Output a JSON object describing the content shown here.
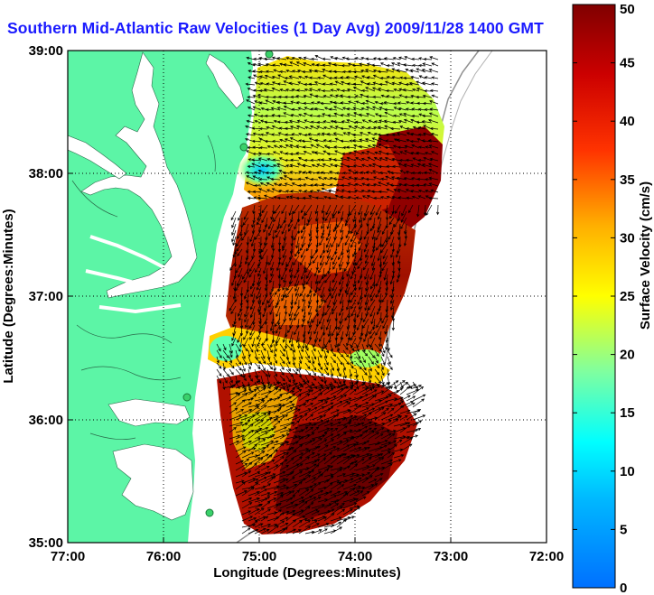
{
  "title": "Southern Mid-Atlantic Raw Velocities (1 Day Avg) 2009/11/28 1400 GMT",
  "map": {
    "xlabel": "Longitude (Degrees:Minutes)",
    "ylabel": "Latitude (Degrees:Minutes)",
    "x_ticks": [
      "77:00",
      "76:00",
      "75:00",
      "74:00",
      "73:00",
      "72:00"
    ],
    "y_ticks": [
      "39:00",
      "38:00",
      "37:00",
      "36:00",
      "35:00"
    ],
    "lon_range": [
      -77,
      -72
    ],
    "lat_range": [
      35,
      39
    ],
    "grid": "dotted",
    "land_color": "#5cf5a6",
    "water_color": "#ffffff",
    "vector_color": "#000000",
    "station_color": "#3ad16b"
  },
  "colorbar": {
    "label": "Surface Velocity (cm/s)",
    "ticks": [
      "0",
      "5",
      "10",
      "15",
      "20",
      "25",
      "30",
      "35",
      "40",
      "45",
      "50"
    ],
    "range": [
      0,
      50
    ],
    "colormap": "jet"
  }
}
